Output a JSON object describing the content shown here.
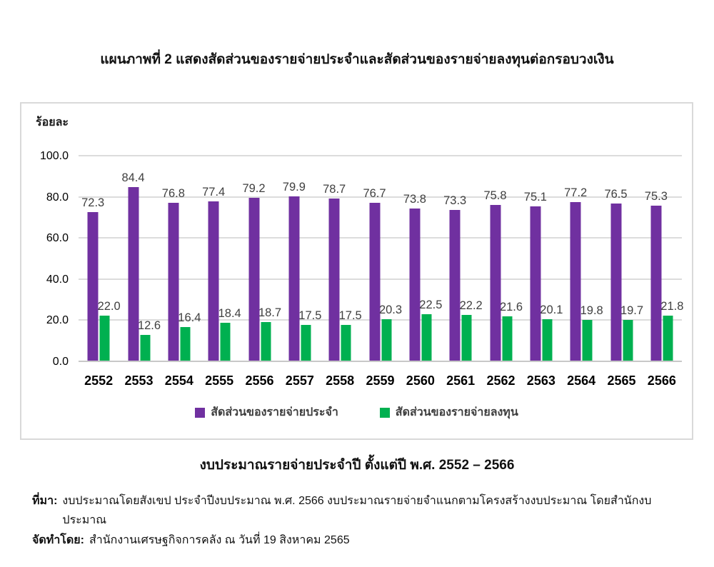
{
  "title": "แผนภาพที่ 2 แสดงสัดส่วนของรายจ่ายประจำและสัดส่วนของรายจ่ายลงทุนต่อกรอบวงเงิน",
  "chart_data": {
    "type": "bar",
    "unit_label": "ร้อยละ",
    "categories": [
      "2552",
      "2553",
      "2554",
      "2555",
      "2556",
      "2557",
      "2558",
      "2559",
      "2560",
      "2561",
      "2562",
      "2563",
      "2564",
      "2565",
      "2566"
    ],
    "series": [
      {
        "name": "สัดส่วนของรายจ่ายประจำ",
        "color": "#7030A0",
        "values": [
          72.3,
          84.4,
          76.8,
          77.4,
          79.2,
          79.9,
          78.7,
          76.7,
          73.8,
          73.3,
          75.8,
          75.1,
          77.2,
          76.5,
          75.3
        ]
      },
      {
        "name": "สัดส่วนของรายจ่ายลงทุน",
        "color": "#00B050",
        "values": [
          22.0,
          12.6,
          16.4,
          18.4,
          18.7,
          17.5,
          17.5,
          20.3,
          22.5,
          22.2,
          21.6,
          20.1,
          19.8,
          19.7,
          21.8
        ]
      }
    ],
    "ylim": [
      0,
      100
    ],
    "yticks": [
      100,
      80,
      60,
      40,
      20,
      0
    ],
    "ytick_format_decimals": 1,
    "grid": true,
    "legend_position": "bottom",
    "gridline_color": "#dcdcdc"
  },
  "caption": "งบประมาณรายจ่ายประจำปี ตั้งแต่ปี พ.ศ. 2552 – 2566",
  "source": {
    "label": "ที่มา:",
    "text": "งบประมาณโดยสังเขป ประจำปีงบประมาณ พ.ศ. 2566 งบประมาณรายจ่ายจำแนกตามโครงสร้างงบประมาณ โดยสำนักงบประมาณ"
  },
  "prepared_by": {
    "label": "จัดทำโดย:",
    "text": "สำนักงานเศรษฐกิจการคลัง ณ วันที่ 19 สิงหาคม 2565"
  }
}
